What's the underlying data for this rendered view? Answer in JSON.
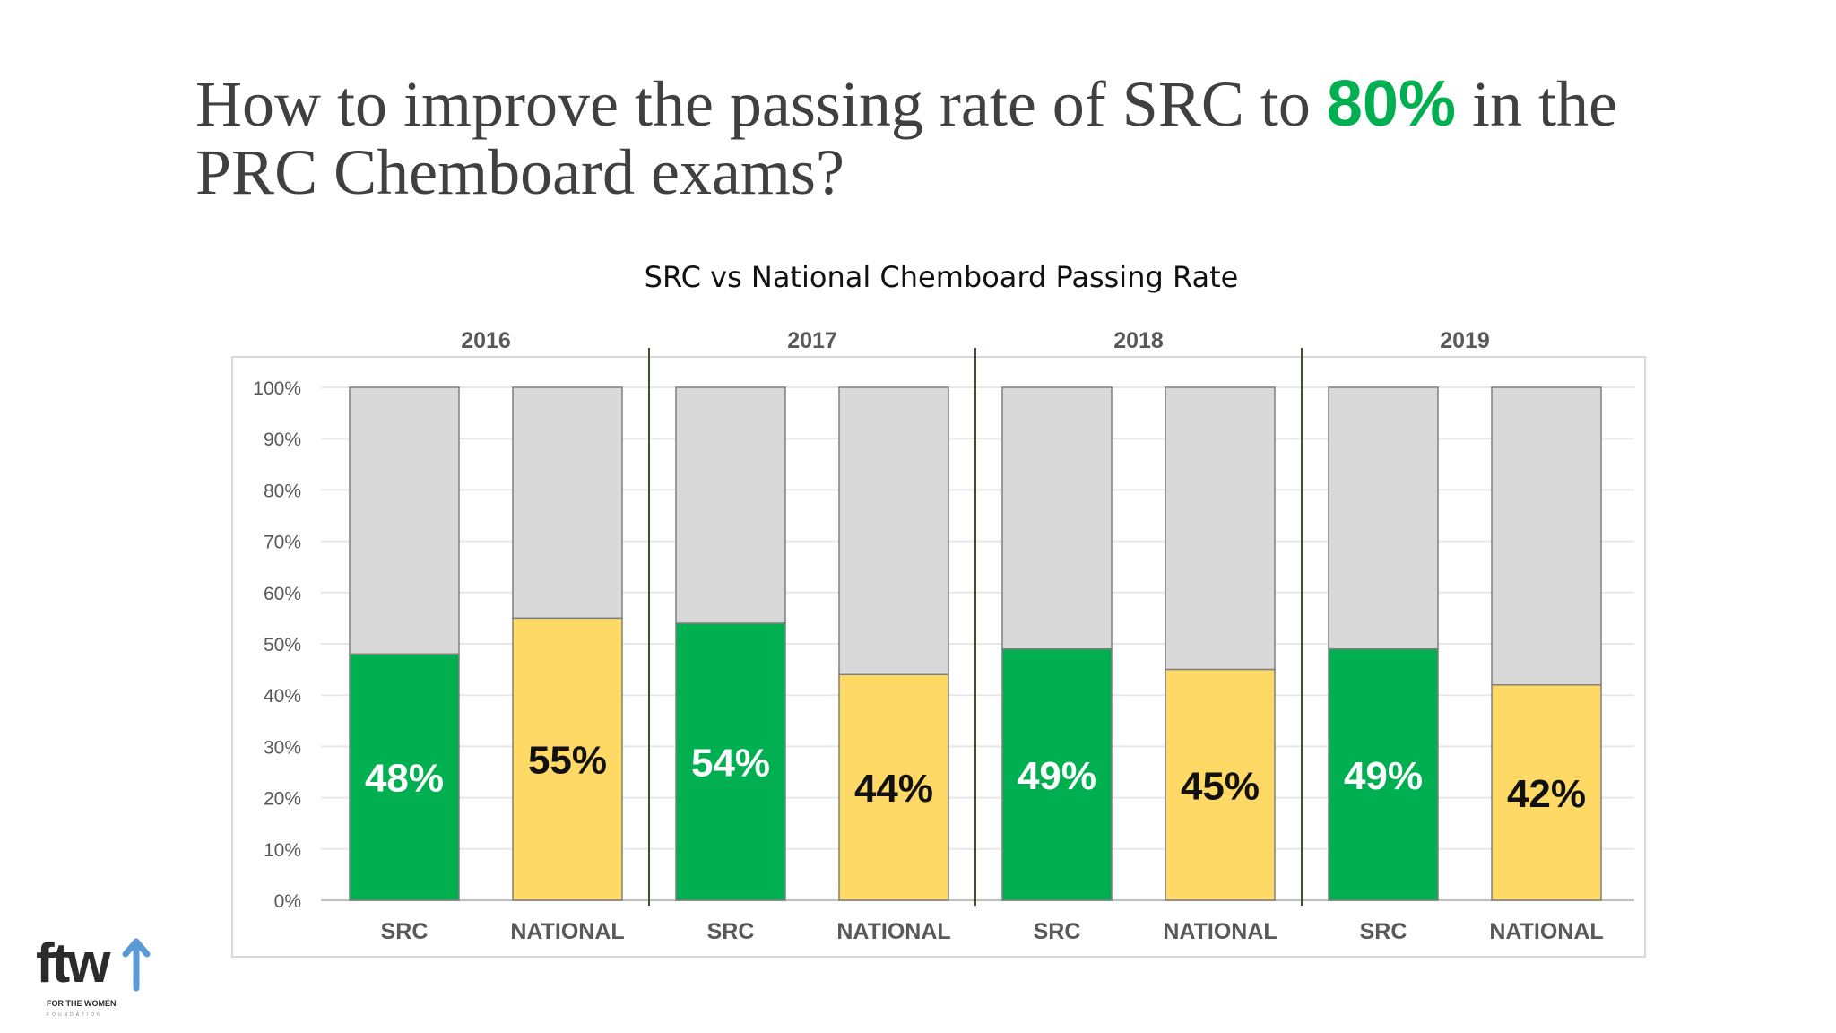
{
  "slide": {
    "title_before": "How to improve the passing rate of SRC to ",
    "title_accent": "80%",
    "title_after": " in the PRC Chemboard exams?"
  },
  "colors": {
    "src": "#00b050",
    "national": "#ffd966",
    "remainder": "#d9d9d9",
    "accent": "#00b050",
    "year_divider": "#375623"
  },
  "chart_data": {
    "type": "bar",
    "stacked": true,
    "title": "SRC vs National Chemboard Passing Rate",
    "groups": [
      "2016",
      "2017",
      "2018",
      "2019"
    ],
    "categories": [
      "SRC",
      "NATIONAL",
      "SRC",
      "NATIONAL",
      "SRC",
      "NATIONAL",
      "SRC",
      "NATIONAL"
    ],
    "group_of_category": [
      "2016",
      "2016",
      "2017",
      "2017",
      "2018",
      "2018",
      "2019",
      "2019"
    ],
    "values": [
      48,
      55,
      54,
      44,
      49,
      45,
      49,
      42
    ],
    "data_labels": [
      "48%",
      "55%",
      "54%",
      "44%",
      "49%",
      "45%",
      "49%",
      "42%"
    ],
    "yticks": [
      "0%",
      "10%",
      "20%",
      "30%",
      "40%",
      "50%",
      "60%",
      "70%",
      "80%",
      "90%",
      "100%"
    ],
    "ylim": [
      0,
      100
    ],
    "grid": true,
    "legend": "none"
  },
  "logo": {
    "text": "ftw",
    "caption": "FOR THE WOMEN",
    "subcaption": "FOUNDATION"
  }
}
